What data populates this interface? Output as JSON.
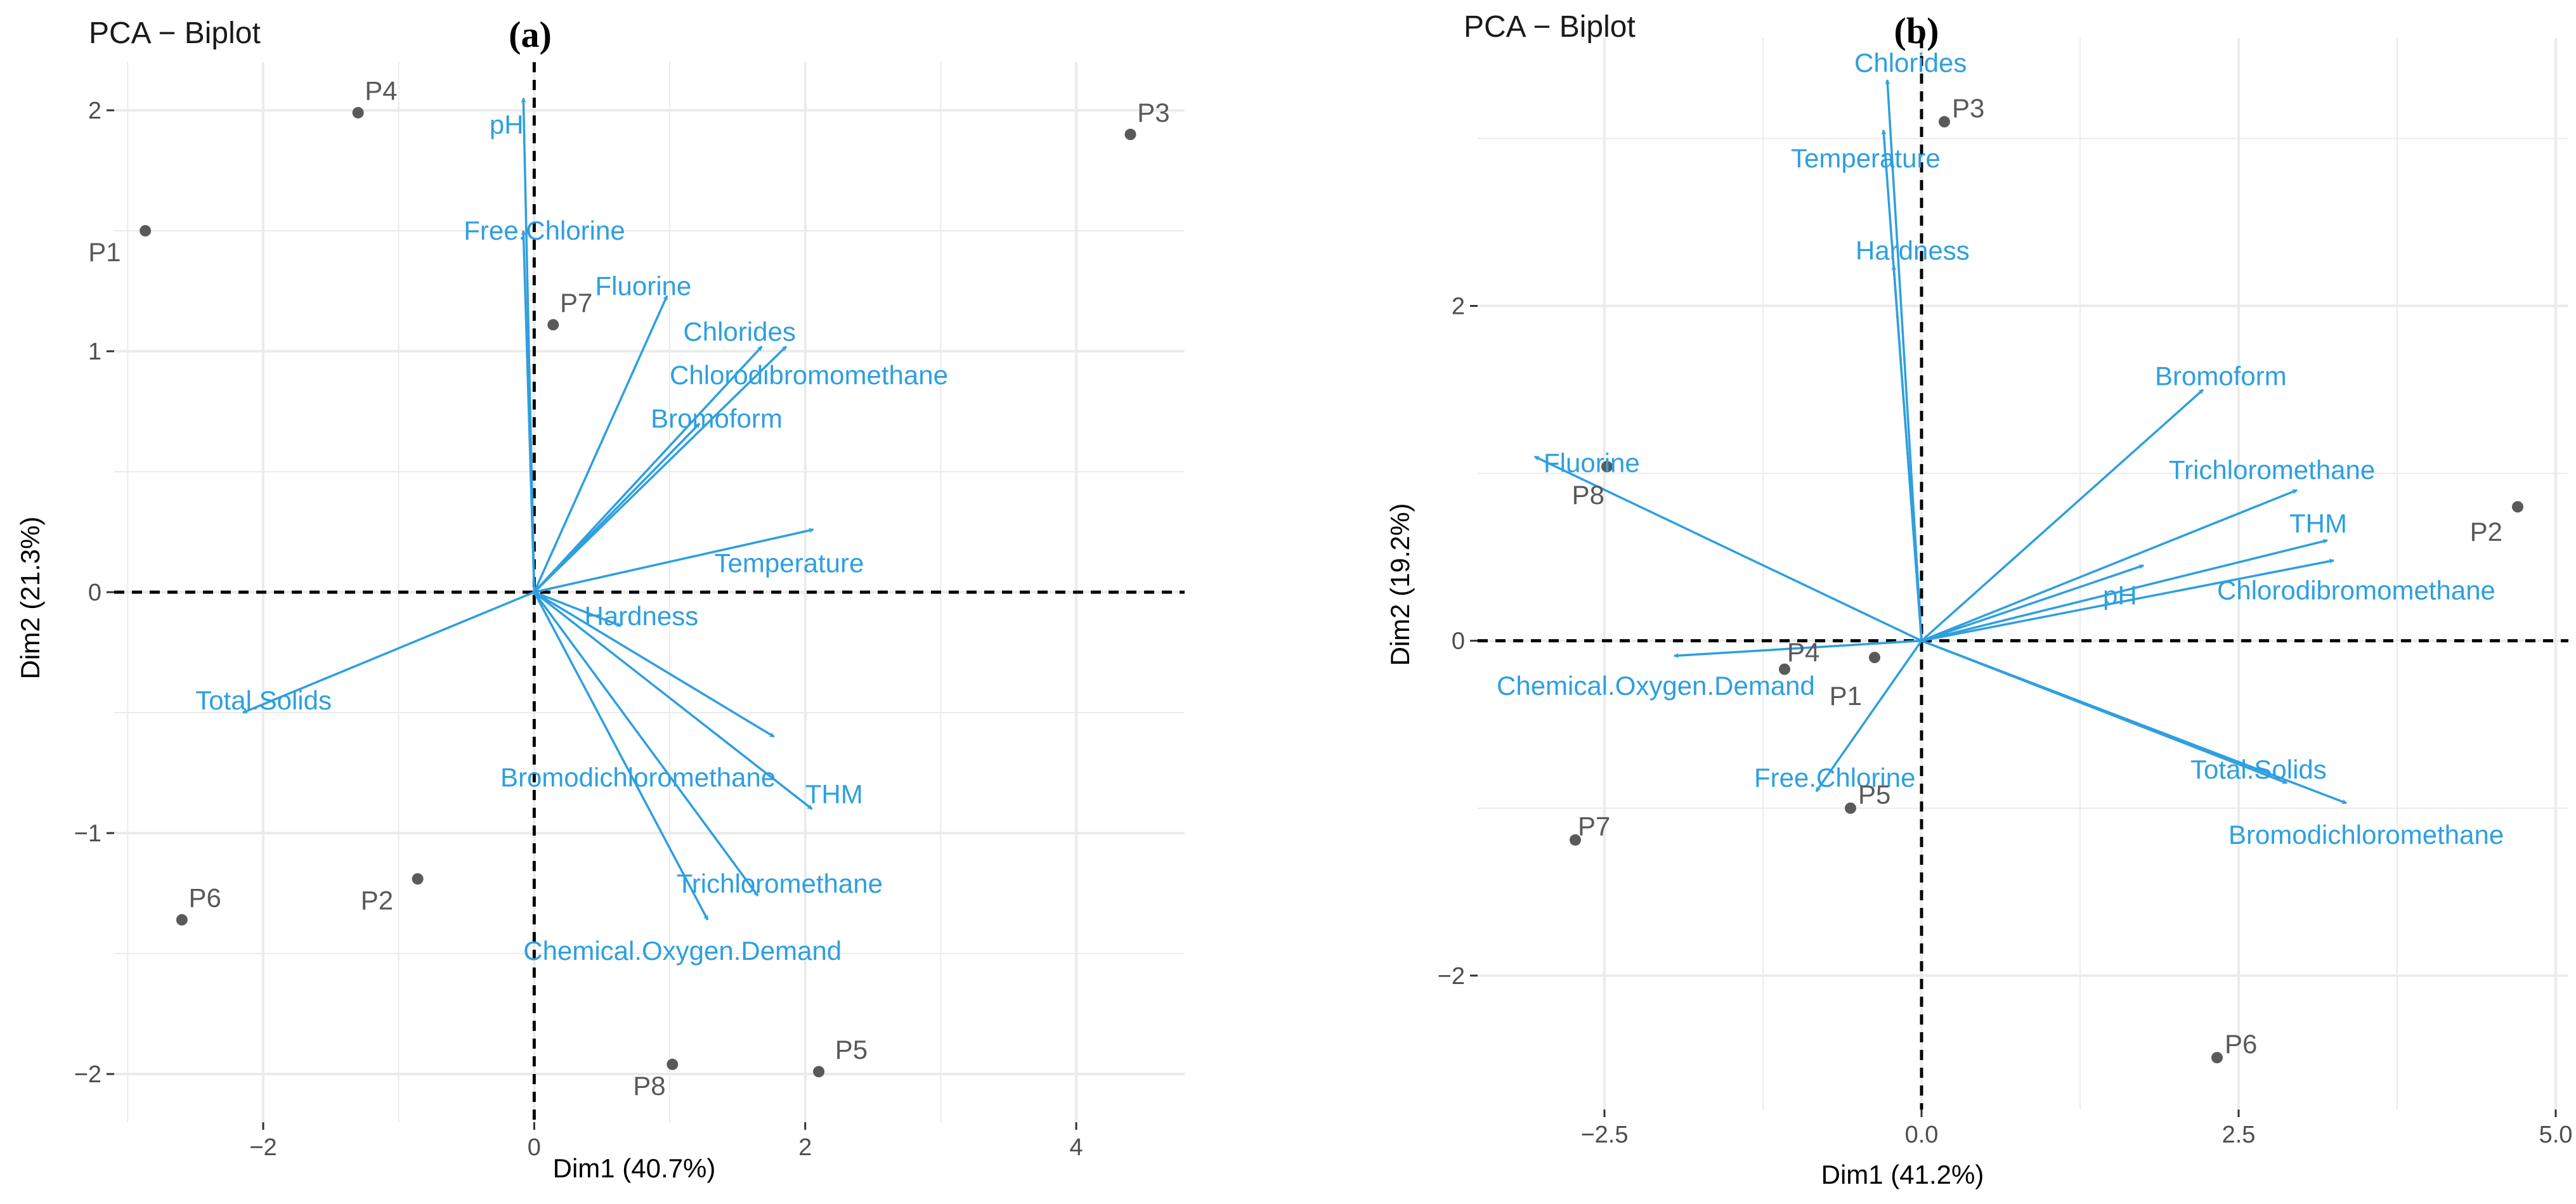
{
  "colors": {
    "variables": "#2e9fdf",
    "points": "#5a5a5a",
    "grid": "#ebebeb",
    "zero": "#000000"
  },
  "chart_data": [
    {
      "type": "scatter",
      "panel": "(a)",
      "title": "PCA − Biplot",
      "xlabel": "Dim1 (40.7%)",
      "ylabel": "Dim2 (21.3%)",
      "xlim": [
        -3.1,
        4.8
      ],
      "ylim": [
        -2.2,
        2.2
      ],
      "xticks": [
        -2,
        0,
        2,
        4
      ],
      "xtick_labels": [
        "−2",
        "0",
        "2",
        "4"
      ],
      "yticks": [
        -2,
        -1,
        0,
        1,
        2
      ],
      "ytick_labels": [
        "−2",
        "−1",
        "0",
        "1",
        "2"
      ],
      "grid": true,
      "observations": [
        {
          "label": "P1",
          "x": -2.87,
          "y": 1.5,
          "lx": -0.18,
          "ly": -0.09,
          "anchor": "end"
        },
        {
          "label": "P2",
          "x": -0.86,
          "y": -1.19,
          "lx": -0.18,
          "ly": -0.09,
          "anchor": "end"
        },
        {
          "label": "P3",
          "x": 4.4,
          "y": 1.9,
          "lx": 0.05,
          "ly": 0.09,
          "anchor": "start"
        },
        {
          "label": "P4",
          "x": -1.3,
          "y": 1.99,
          "lx": 0.05,
          "ly": 0.09,
          "anchor": "start"
        },
        {
          "label": "P5",
          "x": 2.1,
          "y": -1.99,
          "lx": 0.12,
          "ly": 0.09,
          "anchor": "start"
        },
        {
          "label": "P6",
          "x": -2.6,
          "y": -1.36,
          "lx": 0.05,
          "ly": 0.09,
          "anchor": "start"
        },
        {
          "label": "P7",
          "x": 0.14,
          "y": 1.11,
          "lx": 0.05,
          "ly": 0.09,
          "anchor": "start"
        },
        {
          "label": "P8",
          "x": 1.02,
          "y": -1.96,
          "lx": -0.05,
          "ly": -0.09,
          "anchor": "end"
        }
      ],
      "variables": [
        {
          "name": "pH",
          "x": -0.08,
          "y": 2.05,
          "lx": -0.33,
          "ly": 1.94,
          "anchor": "start"
        },
        {
          "name": "Free.Chlorine",
          "x": -0.08,
          "y": 1.5,
          "lx": -0.52,
          "ly": 1.5,
          "anchor": "start"
        },
        {
          "name": "Fluorine",
          "x": 0.98,
          "y": 1.23,
          "lx": 0.45,
          "ly": 1.27,
          "anchor": "start"
        },
        {
          "name": "Chlorides",
          "x": 1.68,
          "y": 1.02,
          "lx": 1.1,
          "ly": 1.08,
          "anchor": "start"
        },
        {
          "name": "Chlorodibromomethane",
          "x": 1.86,
          "y": 1.02,
          "lx": 1.0,
          "ly": 0.9,
          "anchor": "start"
        },
        {
          "name": "Bromoform",
          "x": 1.22,
          "y": 0.7,
          "lx": 0.86,
          "ly": 0.72,
          "anchor": "start"
        },
        {
          "name": "Temperature",
          "x": 2.06,
          "y": 0.26,
          "lx": 1.33,
          "ly": 0.12,
          "anchor": "start"
        },
        {
          "name": "Hardness",
          "x": 0.64,
          "y": -0.14,
          "lx": 0.37,
          "ly": -0.1,
          "anchor": "start"
        },
        {
          "name": "Total.Solids",
          "x": -2.15,
          "y": -0.5,
          "lx": -2.5,
          "ly": -0.45,
          "anchor": "start"
        },
        {
          "name": "Bromodichloromethane",
          "x": 1.77,
          "y": -0.6,
          "lx": -0.25,
          "ly": -0.77,
          "anchor": "start"
        },
        {
          "name": "THM",
          "x": 2.05,
          "y": -0.9,
          "lx": 2.0,
          "ly": -0.84,
          "anchor": "start"
        },
        {
          "name": "Trichloromethane",
          "x": 1.65,
          "y": -1.26,
          "lx": 1.05,
          "ly": -1.21,
          "anchor": "start"
        },
        {
          "name": "Chemical.Oxygen.Demand",
          "x": 1.28,
          "y": -1.36,
          "lx": -0.08,
          "ly": -1.49,
          "anchor": "start"
        }
      ]
    },
    {
      "type": "scatter",
      "panel": "(b)",
      "title": "PCA − Biplot",
      "xlabel": "Dim1 (41.2%)",
      "ylabel": "Dim2 (19.2%)",
      "xlim": [
        -3.5,
        5.1
      ],
      "ylim": [
        -2.8,
        3.6
      ],
      "xticks": [
        -2.5,
        0,
        2.5,
        5
      ],
      "xtick_labels": [
        "−2.5",
        "0.0",
        "2.5",
        "5.0"
      ],
      "yticks": [
        -2,
        0,
        2
      ],
      "ytick_labels": [
        "−2",
        "0",
        "2"
      ],
      "grid": true,
      "observations": [
        {
          "label": "P1",
          "x": -0.37,
          "y": -0.1,
          "lx": -0.1,
          "ly": -0.23,
          "anchor": "end"
        },
        {
          "label": "P2",
          "x": 4.7,
          "y": 0.8,
          "lx": -0.12,
          "ly": -0.15,
          "anchor": "end"
        },
        {
          "label": "P3",
          "x": 0.18,
          "y": 3.1,
          "lx": 0.06,
          "ly": 0.08,
          "anchor": "start"
        },
        {
          "label": "P4",
          "x": -1.08,
          "y": -0.17,
          "lx": 0.02,
          "ly": 0.1,
          "anchor": "start"
        },
        {
          "label": "P5",
          "x": -0.56,
          "y": -1.0,
          "lx": 0.06,
          "ly": 0.08,
          "anchor": "start"
        },
        {
          "label": "P6",
          "x": 2.33,
          "y": -2.49,
          "lx": 0.06,
          "ly": 0.08,
          "anchor": "start"
        },
        {
          "label": "P7",
          "x": -2.73,
          "y": -1.19,
          "lx": 0.02,
          "ly": 0.08,
          "anchor": "start"
        },
        {
          "label": "P8",
          "x": -2.48,
          "y": 1.04,
          "lx": -0.02,
          "ly": -0.17,
          "anchor": "end"
        }
      ],
      "variables": [
        {
          "name": "Chlorides",
          "x": -0.27,
          "y": 3.35,
          "lx": -0.53,
          "ly": 3.45,
          "anchor": "start"
        },
        {
          "name": "Temperature",
          "x": -0.3,
          "y": 3.05,
          "lx": -1.03,
          "ly": 2.88,
          "anchor": "start"
        },
        {
          "name": "Hardness",
          "x": -0.22,
          "y": 2.24,
          "lx": -0.52,
          "ly": 2.33,
          "anchor": "start"
        },
        {
          "name": "Bromoform",
          "x": 2.22,
          "y": 1.5,
          "lx": 1.84,
          "ly": 1.58,
          "anchor": "start"
        },
        {
          "name": "Trichloromethane",
          "x": 2.96,
          "y": 0.9,
          "lx": 1.95,
          "ly": 1.02,
          "anchor": "start"
        },
        {
          "name": "THM",
          "x": 3.2,
          "y": 0.6,
          "lx": 2.9,
          "ly": 0.7,
          "anchor": "start"
        },
        {
          "name": "pH",
          "x": 1.75,
          "y": 0.45,
          "lx": 1.43,
          "ly": 0.27,
          "anchor": "start"
        },
        {
          "name": "Chlorodibromomethane",
          "x": 3.25,
          "y": 0.48,
          "lx": 2.33,
          "ly": 0.3,
          "anchor": "start"
        },
        {
          "name": "Fluorine",
          "x": -3.05,
          "y": 1.1,
          "lx": -2.98,
          "ly": 1.06,
          "anchor": "start"
        },
        {
          "name": "Chemical.Oxygen.Demand",
          "x": -1.95,
          "y": -0.09,
          "lx": -3.35,
          "ly": -0.27,
          "anchor": "start"
        },
        {
          "name": "Free.Chlorine",
          "x": -0.83,
          "y": -0.9,
          "lx": -1.32,
          "ly": -0.82,
          "anchor": "start"
        },
        {
          "name": "Total.Solids",
          "x": 2.88,
          "y": -0.85,
          "lx": 2.12,
          "ly": -0.77,
          "anchor": "start"
        },
        {
          "name": "Bromodichloromethane",
          "x": 3.35,
          "y": -0.97,
          "lx": 2.42,
          "ly": -1.16,
          "anchor": "start"
        }
      ]
    }
  ]
}
